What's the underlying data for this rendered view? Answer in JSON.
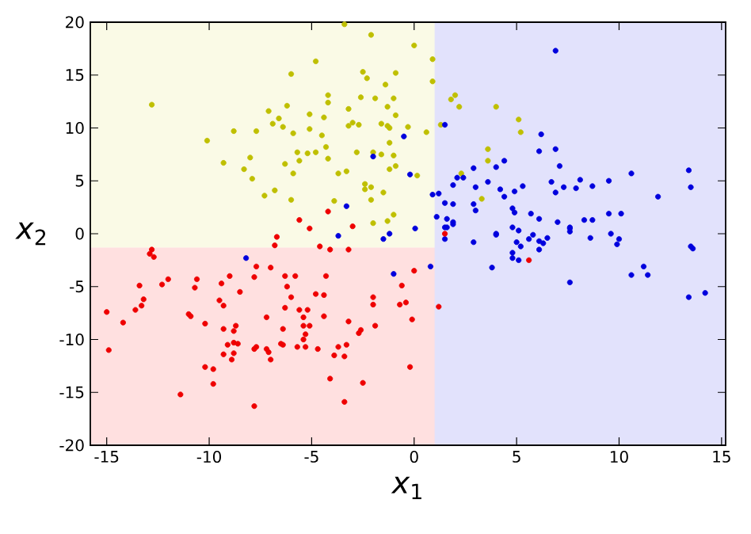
{
  "chart_data": {
    "type": "scatter",
    "xlabel": "*x*$_{1}$",
    "ylabel": "*x*$_{2}$",
    "xlim": [
      -15.8,
      15.2
    ],
    "ylim": [
      -20,
      20
    ],
    "xticks": [
      -15,
      -10,
      -5,
      0,
      5,
      10,
      15
    ],
    "yticks": [
      -20,
      -15,
      -10,
      -5,
      0,
      5,
      10,
      15,
      20
    ],
    "grid": false,
    "marker": "circle",
    "bands": [
      {
        "axis": "y",
        "from": -20,
        "to": -1.3,
        "color": "#ffe0e0"
      },
      {
        "axis": "y",
        "from": -1.3,
        "to": 20,
        "color": "#fafae6"
      },
      {
        "axis": "x",
        "from": 1.0,
        "to": 15.2,
        "color": "#e2e2fc"
      }
    ],
    "series": [
      {
        "color": "#bfbf00",
        "x": [
          -12.8,
          -10.1,
          -9.3,
          -8.8,
          -8.3,
          -8.0,
          -7.9,
          -7.7,
          -7.3,
          -7.1,
          -6.9,
          -6.8,
          -6.6,
          -6.4,
          -6.2,
          -6.3,
          -6.0,
          -5.9,
          -5.9,
          -6.0,
          -5.7,
          -5.6,
          -5.2,
          -5.1,
          -5.1,
          -4.8,
          -4.8,
          -4.5,
          -4.4,
          -4.3,
          -4.2,
          -4.2,
          -4.2,
          -3.9,
          -3.7,
          -3.4,
          -3.3,
          -3.2,
          -3.2,
          -3.0,
          -2.8,
          -2.7,
          -2.6,
          -2.5,
          -2.3,
          -2.4,
          -2.4,
          -2.1,
          -2.1,
          -2.1,
          -2.0,
          -1.9,
          -2.0,
          -1.6,
          -1.6,
          -1.5,
          -1.4,
          -1.3,
          -1.3,
          -1.3,
          -1.2,
          -1.2,
          -1.0,
          -1.2,
          -0.9,
          -1.0,
          -0.9,
          -0.9,
          -1.0,
          0.0,
          0.15,
          0.9,
          0.9,
          1.8,
          2.0,
          2.2,
          4.0,
          5.1,
          5.2,
          3.6,
          3.6,
          2.3,
          3.3,
          -0.3,
          0.6,
          1.3
        ],
        "values": [
          12.2,
          8.8,
          6.7,
          9.7,
          6.1,
          7.2,
          5.2,
          9.7,
          3.6,
          11.6,
          10.4,
          4.1,
          10.9,
          10.1,
          12.1,
          6.6,
          15.1,
          5.7,
          9.5,
          3.2,
          7.7,
          6.9,
          7.6,
          11.3,
          9.9,
          16.3,
          7.7,
          9.3,
          11.0,
          8.2,
          7.1,
          12.4,
          13.1,
          3.1,
          5.7,
          19.8,
          5.9,
          11.8,
          10.2,
          10.5,
          7.7,
          10.3,
          12.9,
          15.3,
          14.7,
          4.7,
          4.2,
          18.8,
          4.4,
          3.2,
          1.0,
          12.8,
          7.7,
          10.4,
          7.5,
          3.9,
          14.1,
          10.2,
          1.2,
          12.0,
          10.0,
          8.6,
          7.4,
          6.1,
          6.4,
          12.8,
          15.2,
          11.2,
          1.8,
          17.8,
          5.5,
          16.5,
          14.4,
          12.7,
          13.1,
          12.0,
          12.0,
          10.8,
          9.6,
          8.0,
          6.9,
          5.7,
          3.3,
          10.1,
          9.6,
          10.3
        ]
      },
      {
        "color": "#0000dd",
        "x": [
          -0.5,
          -2.0,
          -0.2,
          -3.3,
          0.05,
          -3.7,
          -1.2,
          -8.2,
          -1.5,
          -1.0,
          6.9,
          1.5,
          6.2,
          6.1,
          6.9,
          7.1,
          4.4,
          4.0,
          2.9,
          2.1,
          2.4,
          3.6,
          1.9,
          3.0,
          4.2,
          5.3,
          4.9,
          6.7,
          6.9,
          7.3,
          7.9,
          8.1,
          8.7,
          9.5,
          10.6,
          13.4,
          13.5,
          11.9,
          0.9,
          1.2,
          4.4,
          1.5,
          1.9,
          2.9,
          3.0,
          4.8,
          4.9,
          5.7,
          6.1,
          7.0,
          7.6,
          8.3,
          8.7,
          9.5,
          10.1,
          1.1,
          1.6,
          1.9,
          1.5,
          4.0,
          4.8,
          5.1,
          5.8,
          1.5,
          1.6,
          1.9,
          2.9,
          4.0,
          0.8,
          3.8,
          5.0,
          5.2,
          4.8,
          4.8,
          5.1,
          5.6,
          6.1,
          6.3,
          6.1,
          6.5,
          7.6,
          7.6,
          7.6,
          8.6,
          9.6,
          10.0,
          9.9,
          10.6,
          11.2,
          11.4,
          13.5,
          13.6,
          13.4,
          14.2
        ],
        "values": [
          9.2,
          7.3,
          5.6,
          2.6,
          0.5,
          -0.2,
          0.0,
          -2.3,
          -0.5,
          -3.8,
          17.3,
          10.3,
          9.4,
          7.8,
          8.0,
          6.4,
          6.9,
          6.3,
          6.2,
          5.3,
          5.3,
          4.9,
          4.6,
          4.4,
          4.2,
          4.5,
          4.0,
          4.9,
          3.9,
          4.4,
          4.3,
          5.1,
          4.5,
          5.0,
          5.7,
          6.0,
          4.4,
          3.5,
          3.7,
          3.8,
          3.5,
          2.9,
          2.8,
          2.8,
          2.2,
          2.4,
          2.0,
          1.9,
          1.4,
          1.1,
          0.6,
          1.3,
          1.3,
          1.9,
          1.9,
          1.6,
          1.4,
          1.1,
          0.6,
          0.0,
          0.6,
          0.3,
          -0.1,
          -0.5,
          0.6,
          0.9,
          -0.8,
          -0.1,
          -3.1,
          -3.2,
          -0.8,
          -1.2,
          -1.8,
          -2.3,
          -2.5,
          -0.5,
          -0.7,
          -0.9,
          -1.5,
          -0.4,
          0.5,
          0.2,
          -4.6,
          -0.4,
          0.0,
          -0.5,
          -1.0,
          -3.9,
          -3.1,
          -3.9,
          -1.2,
          -1.4,
          -6.0,
          -5.6
        ]
      },
      {
        "color": "#ee0000",
        "x": [
          -5.6,
          -4.2,
          -5.1,
          -3.0,
          -6.7,
          -6.8,
          -4.6,
          -4.1,
          -3.2,
          -12.8,
          -12.9,
          -12.7,
          -7.7,
          -7.0,
          0.0,
          -9.0,
          -7.8,
          -6.3,
          -5.8,
          -4.3,
          -12.0,
          -10.6,
          -12.3,
          -13.4,
          -9.4,
          -6.2,
          -10.7,
          -8.5,
          -4.8,
          -4.4,
          -0.6,
          -6.0,
          -2.0,
          -13.2,
          -9.5,
          -0.4,
          -0.7,
          -2.0,
          -9.3,
          -13.6,
          -13.3,
          -15.0,
          -6.3,
          -5.6,
          -5.2,
          -11.0,
          -10.9,
          -5.4,
          -4.4,
          -7.2,
          -0.1,
          -14.2,
          -10.2,
          -8.7,
          -5.4,
          -5.1,
          -1.9,
          -6.4,
          -9.3,
          -8.8,
          -3.2,
          -2.6,
          -2.7,
          -5.3,
          -5.4,
          -6.5,
          -6.4,
          -9.1,
          -8.8,
          -8.6,
          -7.7,
          -7.8,
          -7.2,
          -7.1,
          -5.7,
          -5.3,
          -4.7,
          -3.7,
          -3.3,
          -9.3,
          -8.8,
          -8.9,
          -7.0,
          -3.9,
          -3.4,
          -14.9,
          -10.2,
          -9.8,
          -0.2,
          -4.1,
          -9.8,
          -2.5,
          -11.4,
          -3.4,
          -7.8,
          1.5,
          1.2,
          5.6
        ],
        "values": [
          1.3,
          2.1,
          0.5,
          0.7,
          -0.3,
          -1.1,
          -1.2,
          -1.5,
          -1.5,
          -1.5,
          -1.9,
          -2.2,
          -3.1,
          -3.2,
          -3.5,
          -4.0,
          -4.1,
          -4.0,
          -4.0,
          -4.0,
          -4.3,
          -4.3,
          -4.8,
          -4.9,
          -4.7,
          -5.0,
          -5.1,
          -5.5,
          -5.7,
          -5.8,
          -4.9,
          -6.0,
          -6.0,
          -6.2,
          -6.3,
          -6.5,
          -6.7,
          -6.7,
          -6.8,
          -7.2,
          -6.8,
          -7.4,
          -7.0,
          -7.2,
          -7.2,
          -7.6,
          -7.8,
          -7.9,
          -7.8,
          -7.9,
          -8.1,
          -8.4,
          -8.5,
          -8.7,
          -8.7,
          -8.7,
          -8.7,
          -9.0,
          -9.0,
          -9.2,
          -8.3,
          -9.1,
          -9.4,
          -9.5,
          -10.0,
          -10.4,
          -10.5,
          -10.5,
          -10.3,
          -10.4,
          -10.7,
          -10.9,
          -10.9,
          -11.2,
          -10.7,
          -10.7,
          -10.9,
          -10.7,
          -10.5,
          -11.4,
          -11.3,
          -11.9,
          -11.9,
          -11.5,
          -11.6,
          -11.0,
          -12.6,
          -12.8,
          -12.6,
          -13.7,
          -14.2,
          -14.1,
          -15.2,
          -15.9,
          -16.3,
          0.0,
          -6.9,
          -2.5
        ]
      }
    ]
  }
}
